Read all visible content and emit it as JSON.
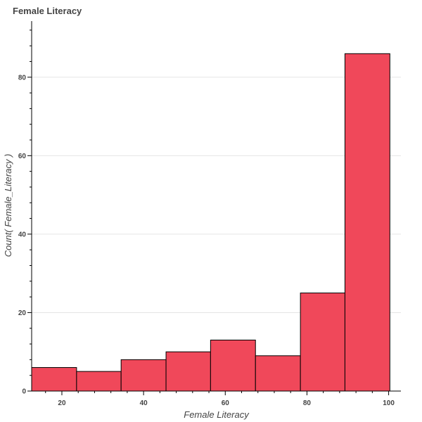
{
  "chart_data": {
    "type": "bar",
    "title": "Female Literacy",
    "xlabel": "Female Literacy",
    "ylabel": "Count( Female_Literacy )",
    "bins": [
      {
        "x0": 12.6,
        "x1": 23.6,
        "count": 6
      },
      {
        "x0": 23.6,
        "x1": 34.5,
        "count": 5
      },
      {
        "x0": 34.5,
        "x1": 45.5,
        "count": 8
      },
      {
        "x0": 45.5,
        "x1": 56.4,
        "count": 10
      },
      {
        "x0": 56.4,
        "x1": 67.4,
        "count": 13
      },
      {
        "x0": 67.4,
        "x1": 78.4,
        "count": 9
      },
      {
        "x0": 78.4,
        "x1": 89.3,
        "count": 25
      },
      {
        "x0": 89.3,
        "x1": 100.3,
        "count": 86
      }
    ],
    "xlim": [
      12.6,
      103
    ],
    "ylim": [
      0,
      94.3
    ],
    "x_ticks": [
      20,
      40,
      60,
      80,
      100
    ],
    "y_ticks": [
      0,
      20,
      40,
      60,
      80
    ],
    "grid": true,
    "colors": {
      "bar_fill": "#f0485a",
      "bar_stroke": "#000000",
      "grid": "#e5e5e5"
    }
  }
}
